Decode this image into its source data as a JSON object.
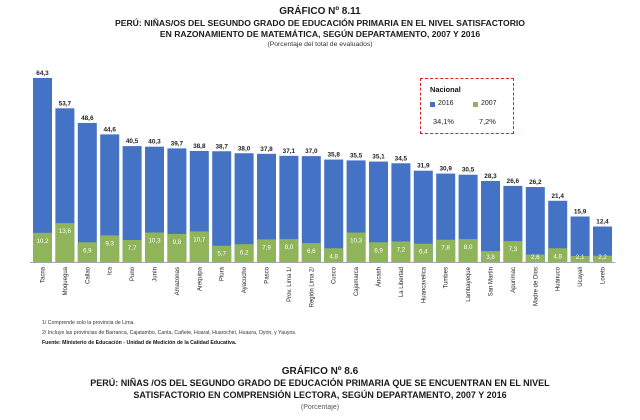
{
  "figure1": {
    "number": "GRÁFICO Nº 8.11",
    "title_line1": "PERÚ: NIÑAS/OS DEL SEGUNDO GRADO DE EDUCACIÓN PRIMARIA EN EL NIVEL SATISFACTORIO",
    "title_line2": "EN RAZONAMIENTO DE MATEMÁTICA, SEGÚN DEPARTAMENTO, 2007 Y  2016",
    "subtitle": "(Porcentaje del total de evaluados)"
  },
  "legend": {
    "title": "Nacional",
    "label_2016": "2016",
    "label_2007": "2007",
    "value_2016": "34,1%",
    "value_2007": "7,2%"
  },
  "chart_data": {
    "type": "bar",
    "categories": [
      "Tacna",
      "Moquegua",
      "Callao",
      "Ica",
      "Puno",
      "Junín",
      "Amazonas",
      "Arequipa",
      "Piura",
      "Ayacucho",
      "Pasco",
      "Prov. Lima 1/",
      "Región Lima 2/",
      "Cusco",
      "Cajamarca",
      "Áncash",
      "La Libertad",
      "Huancavelica",
      "Tumbes",
      "Lambayeque",
      "San Martín",
      "Apurímac",
      "Madre de Dios",
      "Huánuco",
      "Ucayali",
      "Loreto"
    ],
    "series": [
      {
        "name": "2016",
        "color": "#4472c4",
        "values": [
          64.3,
          53.7,
          48.6,
          44.6,
          40.5,
          40.3,
          39.7,
          38.8,
          38.7,
          38.0,
          37.8,
          37.1,
          37.0,
          35.8,
          35.5,
          35.1,
          34.5,
          31.9,
          30.9,
          30.5,
          28.3,
          26.6,
          26.2,
          21.4,
          15.9,
          12.4
        ],
        "labels": [
          "64,3",
          "53,7",
          "48,6",
          "44,6",
          "40,5",
          "40,3",
          "39,7",
          "38,8",
          "38,7",
          "38,0",
          "37,8",
          "37,1",
          "37,0",
          "35,8",
          "35,5",
          "35,1",
          "34,5",
          "31,9",
          "30,9",
          "30,5",
          "28,3",
          "26,6",
          "26,2",
          "21,4",
          "15,9",
          "12,4"
        ]
      },
      {
        "name": "2007",
        "color": "#8fb45a",
        "values": [
          10.2,
          13.6,
          6.9,
          9.3,
          7.7,
          10.3,
          9.8,
          10.7,
          5.7,
          6.2,
          7.9,
          8.0,
          6.6,
          4.8,
          10.3,
          6.9,
          7.2,
          6.4,
          7.8,
          8.0,
          3.8,
          7.3,
          2.6,
          4.8,
          2.1,
          2.2
        ],
        "labels": [
          "10,2",
          "13,6",
          "6,9",
          "9,3",
          "7,7",
          "10,3",
          "9,8",
          "10,7",
          "5,7",
          "6,2",
          "7,9",
          "8,0",
          "6,6",
          "4,8",
          "10,3",
          "6,9",
          "7,2",
          "6,4",
          "7,8",
          "8,0",
          "3,8",
          "7,3",
          "2,6",
          "4,8",
          "2,1",
          "2,2"
        ]
      }
    ],
    "ylim": [
      0,
      70
    ],
    "grid": false,
    "legend_position": "top-right"
  },
  "notes": {
    "note1": "1/ Comprende solo la provincia de Lima.",
    "note2": "2/ Incluye las provincias de Barranca, Cajatambo, Canta, Cañete, Huaral, Huarochirí, Huaura, Oyón, y Yauyos.",
    "source": "Fuente: Ministerio de Educación - Unidad de Medición de la Calidad Educativa."
  },
  "figure2": {
    "number": "GRÁFICO Nº 8.6",
    "title_line1": "PERÚ:  NIÑAS /OS DEL SEGUNDO GRADO DE EDUCACIÓN PRIMARIA QUE SE ENCUENTRAN EN EL NIVEL",
    "title_line2": "SATISFACTORIO EN COMPRENSIÓN LECTORA, SEGÚN DEPARTAMENTO, 2007 Y 2016",
    "subtitle": "(Porcentaje)"
  }
}
